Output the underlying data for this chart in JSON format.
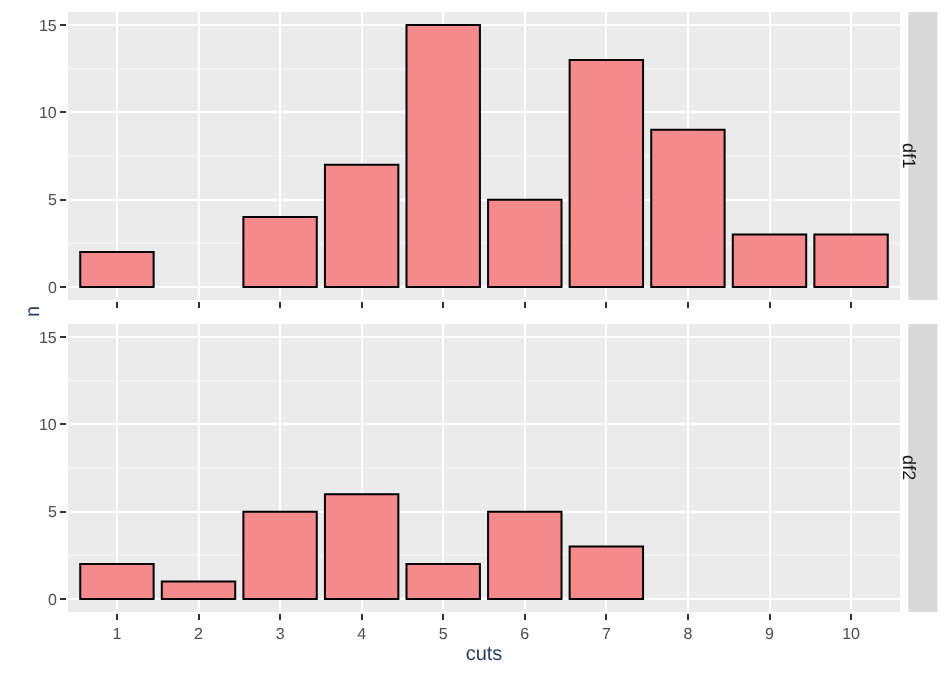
{
  "chart_data": [
    {
      "type": "bar",
      "title": "df1",
      "ylabel": "n",
      "categories": [
        "1",
        "2",
        "3",
        "4",
        "5",
        "6",
        "7",
        "8",
        "9",
        "10"
      ],
      "series": [
        {
          "color": "#f48a8b",
          "values": [
            2,
            null,
            4,
            7,
            15,
            5,
            13,
            9,
            3,
            3
          ]
        }
      ],
      "ylim": [
        -0.75,
        15.75
      ],
      "yticks": [
        0,
        5,
        10,
        15
      ],
      "grid": true,
      "tick_labels": "y"
    },
    {
      "type": "bar",
      "title": "df2",
      "xlabel": "cuts",
      "categories": [
        "1",
        "2",
        "3",
        "4",
        "5",
        "6",
        "7",
        "8",
        "9",
        "10"
      ],
      "series": [
        {
          "color": "#f48a8b",
          "values": [
            2,
            1,
            5,
            6,
            2,
            5,
            3,
            null,
            null,
            null
          ]
        }
      ],
      "ylim": [
        -0.75,
        15.75
      ],
      "yticks": [
        0,
        5,
        10,
        15
      ],
      "grid": true
    }
  ]
}
